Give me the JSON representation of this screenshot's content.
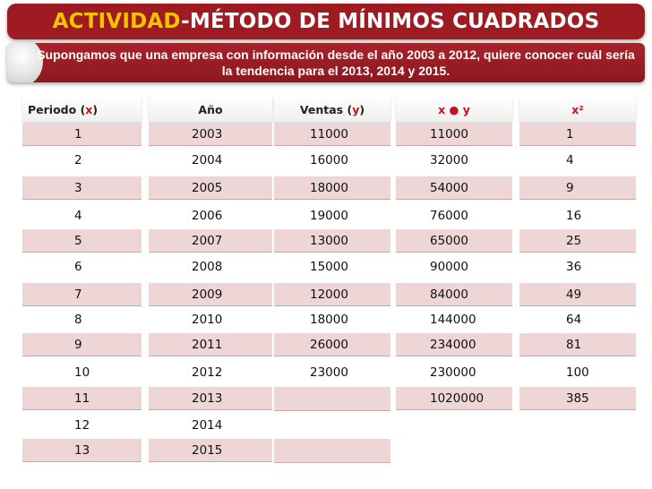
{
  "title": {
    "accent": "ACTIVIDAD",
    "rest": "-MÉTODO DE MÍNIMOS CUADRADOS"
  },
  "subtitle": "Supongamos que una empresa con información desde el año 2003 a 2012, quiere conocer cuál sería la tendencia para el 2013, 2014 y 2015.",
  "headers": {
    "periodo_label": "Periodo (",
    "periodo_var": "x",
    "periodo_close": ")",
    "anio": "Año",
    "ventas_label": "Ventas (",
    "ventas_var": "y",
    "ventas_close": ")",
    "xy": "x ● y",
    "x2": "x²"
  },
  "periodo": [
    "1",
    "2",
    "3",
    "4",
    "5",
    "6",
    "7",
    "8",
    "9",
    "10",
    "11",
    "12",
    "13"
  ],
  "anio": [
    "2003",
    "2004",
    "2005",
    "2006",
    "2007",
    "2008",
    "2009",
    "2010",
    "2011",
    "2012",
    "2013",
    "2014",
    "2015"
  ],
  "ventas": [
    "11000",
    "16000",
    "18000",
    "19000",
    "13000",
    "15000",
    "12000",
    "18000",
    "26000",
    "23000"
  ],
  "xy": [
    "11000",
    "32000",
    "54000",
    "76000",
    "65000",
    "90000",
    "84000",
    "144000",
    "234000",
    "230000",
    "1020000"
  ],
  "x2": [
    "1",
    "4",
    "9",
    "16",
    "25",
    "36",
    "49",
    "64",
    "81",
    "100",
    "385"
  ]
}
